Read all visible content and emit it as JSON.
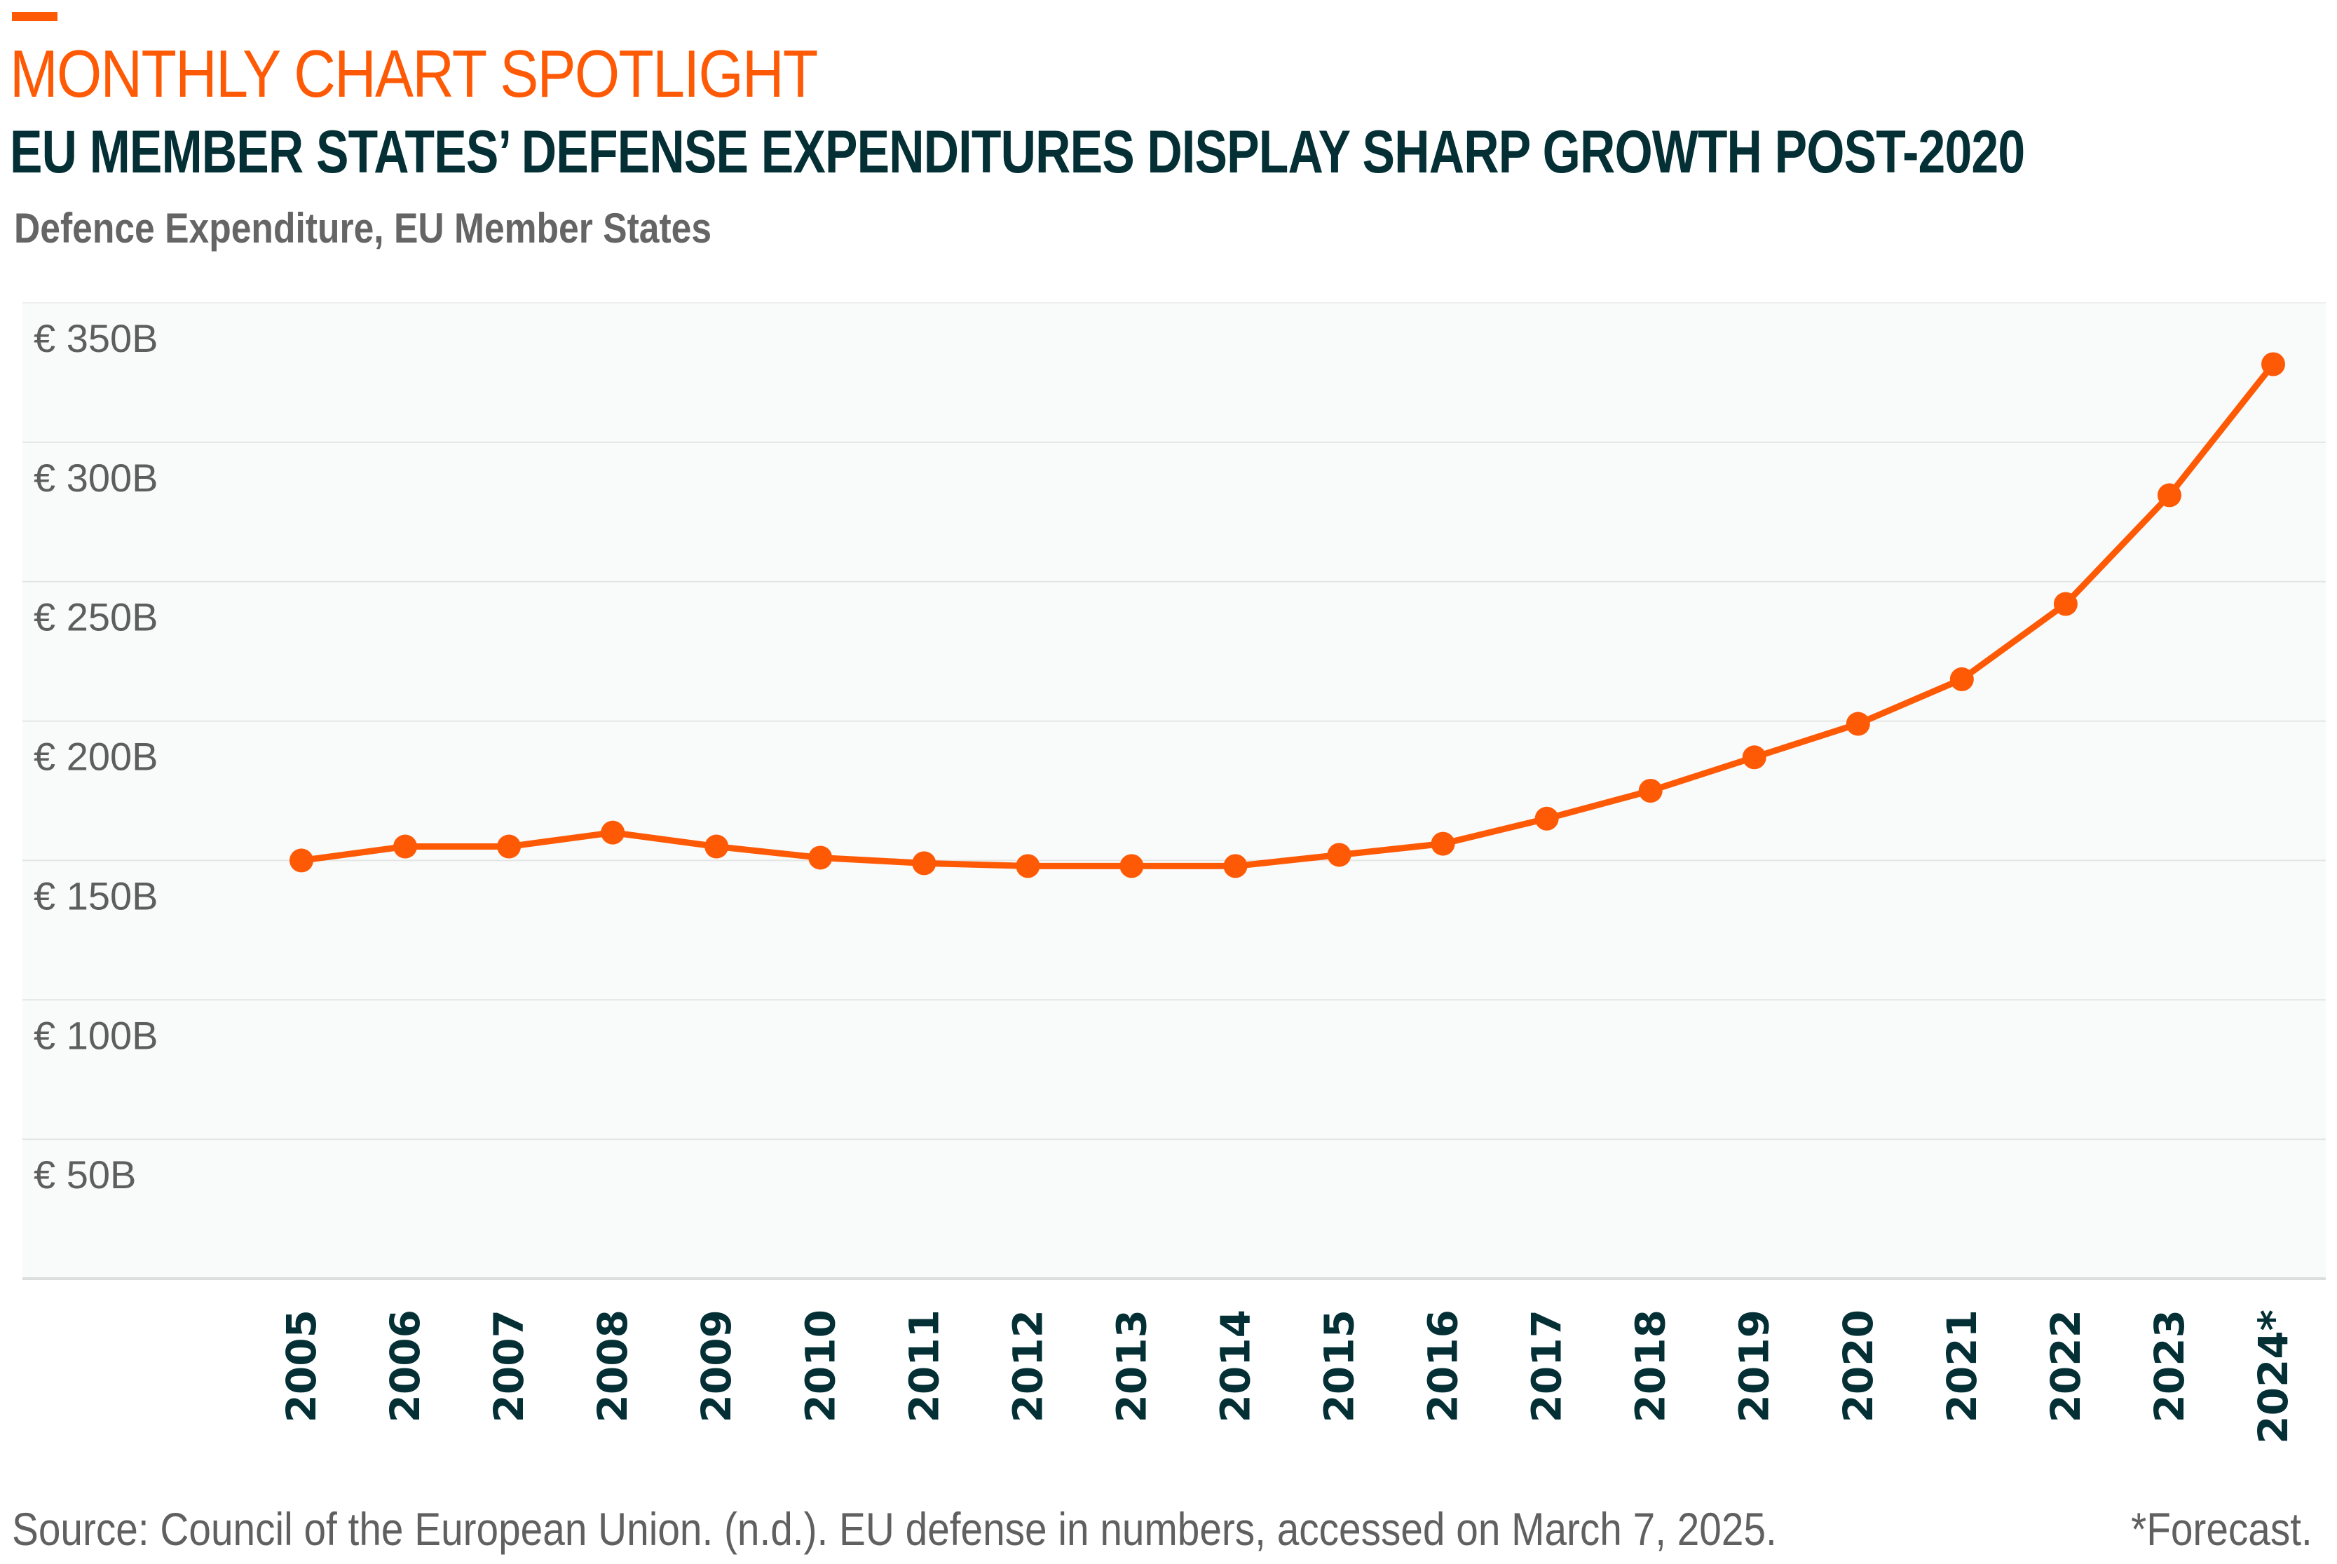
{
  "header": {
    "kicker": "MONTHLY CHART SPOTLIGHT",
    "title": "EU MEMBER STATES’ DEFENSE EXPENDITURES DISPLAY SHARP GROWTH POST-2020",
    "accent_color": "#fe5a06",
    "title_color": "#032f35"
  },
  "chart_data": {
    "type": "line",
    "title": "Defence Expenditure, EU Member States",
    "xlabel": "",
    "ylabel": "",
    "categories": [
      "2005",
      "2006",
      "2007",
      "2008",
      "2009",
      "2010",
      "2011",
      "2012",
      "2013",
      "2014",
      "2015",
      "2016",
      "2017",
      "2018",
      "2019",
      "2020",
      "2021",
      "2022",
      "2023",
      "2024*"
    ],
    "series": [
      {
        "name": "Defence Expenditure (€ billions)",
        "color": "#fe5a06",
        "values": [
          150,
          155,
          155,
          160,
          155,
          151,
          149,
          148,
          148,
          148,
          152,
          156,
          165,
          175,
          187,
          199,
          215,
          242,
          281,
          328
        ]
      }
    ],
    "ylim": [
      0,
      350
    ],
    "yticks": [
      50,
      100,
      150,
      200,
      250,
      300,
      350
    ],
    "ytick_labels": [
      "€ 50B",
      "€ 100B",
      "€ 150B",
      "€ 200B",
      "€ 250B",
      "€ 300B",
      "€ 350B"
    ],
    "grid": true,
    "legend": "none",
    "markers": true
  },
  "footer": {
    "source": "Source: Council of the European Union. (n.d.). EU defense in numbers, accessed on March 7, 2025.",
    "note": "*Forecast."
  }
}
